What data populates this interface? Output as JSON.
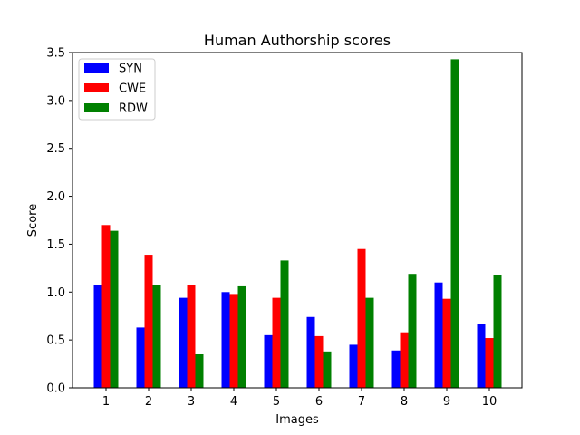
{
  "chart_data": {
    "type": "bar",
    "title": "Human Authorship scores",
    "xlabel": "Images",
    "ylabel": "Score",
    "categories": [
      "1",
      "2",
      "3",
      "4",
      "5",
      "6",
      "7",
      "8",
      "9",
      "10"
    ],
    "ylim": [
      0,
      3.5
    ],
    "yticks": [
      "0.0",
      "0.5",
      "1.0",
      "1.5",
      "2.0",
      "2.5",
      "3.0",
      "3.5"
    ],
    "legend_position": "top-left",
    "grid": false,
    "series": [
      {
        "name": "SYN",
        "color": "#0000ff",
        "values": [
          1.07,
          0.63,
          0.94,
          1.0,
          0.55,
          0.74,
          0.45,
          0.39,
          1.1,
          0.67
        ]
      },
      {
        "name": "CWE",
        "color": "#ff0000",
        "values": [
          1.7,
          1.39,
          1.07,
          0.98,
          0.94,
          0.54,
          1.45,
          0.58,
          0.93,
          0.52
        ]
      },
      {
        "name": "RDW",
        "color": "#008000",
        "values": [
          1.64,
          1.07,
          0.35,
          1.06,
          1.33,
          0.38,
          0.94,
          1.19,
          3.43,
          1.18
        ]
      }
    ]
  }
}
